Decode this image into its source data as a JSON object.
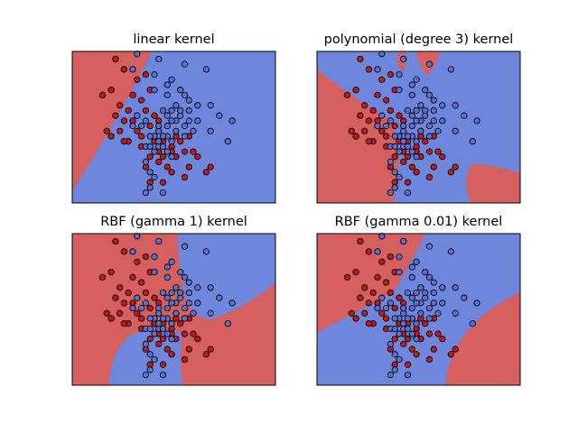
{
  "figure": {
    "colors": {
      "class_a": "#d65f5f",
      "class_b": "#6f86dd",
      "point_a": "#c0191f",
      "point_b": "#5a70d2",
      "point_edge": "#000000",
      "frame": "#000000"
    }
  },
  "chart_data": [
    {
      "type": "scatter",
      "title": "linear kernel",
      "xlim": [
        4.0,
        8.7
      ],
      "ylim": [
        1.8,
        4.75
      ],
      "show_ticks": false,
      "decision_regions": "linear",
      "series_ref": "points"
    },
    {
      "type": "scatter",
      "title": "polynomial (degree 3) kernel",
      "xlim": [
        4.0,
        8.7
      ],
      "ylim": [
        1.8,
        4.75
      ],
      "show_ticks": false,
      "decision_regions": "polynomial",
      "series_ref": "points"
    },
    {
      "type": "scatter",
      "title": "RBF (gamma 1) kernel",
      "xlim": [
        4.0,
        8.7
      ],
      "ylim": [
        1.8,
        4.75
      ],
      "show_ticks": false,
      "decision_regions": "rbf_gamma_1",
      "series_ref": "points"
    },
    {
      "type": "scatter",
      "title": "RBF (gamma 0.01) kernel",
      "xlim": [
        4.0,
        8.7
      ],
      "ylim": [
        1.8,
        4.75
      ],
      "show_ticks": false,
      "decision_regions": "rbf_gamma_001",
      "series_ref": "points"
    }
  ],
  "points": [
    [
      5.0,
      4.6,
      0
    ],
    [
      5.2,
      4.4,
      0
    ],
    [
      5.5,
      4.2,
      0
    ],
    [
      5.7,
      4.3,
      0
    ],
    [
      5.8,
      4.0,
      0
    ],
    [
      5.4,
      3.9,
      0
    ],
    [
      5.6,
      3.8,
      0
    ],
    [
      5.1,
      3.7,
      0
    ],
    [
      5.3,
      3.6,
      0
    ],
    [
      5.7,
      3.6,
      0
    ],
    [
      5.9,
      3.5,
      0
    ],
    [
      5.0,
      3.5,
      0
    ],
    [
      5.4,
      3.4,
      0
    ],
    [
      5.2,
      3.4,
      0
    ],
    [
      5.8,
      3.3,
      0
    ],
    [
      6.0,
      3.4,
      0
    ],
    [
      5.5,
      3.2,
      0
    ],
    [
      5.1,
      3.2,
      0
    ],
    [
      4.8,
      3.2,
      0
    ],
    [
      4.9,
      3.1,
      0
    ],
    [
      5.3,
      3.0,
      0
    ],
    [
      5.6,
      3.1,
      0
    ],
    [
      6.1,
      3.0,
      0
    ],
    [
      5.9,
      3.0,
      0
    ],
    [
      5.2,
      3.0,
      0
    ],
    [
      5.6,
      2.9,
      0
    ],
    [
      6.3,
      2.9,
      0
    ],
    [
      6.4,
      3.1,
      0
    ],
    [
      6.5,
      3.0,
      0
    ],
    [
      6.7,
      3.1,
      0
    ],
    [
      6.6,
      2.8,
      0
    ],
    [
      6.3,
      2.8,
      0
    ],
    [
      6.1,
      2.7,
      0
    ],
    [
      6.0,
      2.6,
      0
    ],
    [
      5.8,
      2.7,
      0
    ],
    [
      6.4,
      2.7,
      0
    ],
    [
      6.9,
      2.7,
      0
    ],
    [
      7.2,
      2.5,
      0
    ],
    [
      6.7,
      2.5,
      0
    ],
    [
      6.2,
      2.5,
      0
    ],
    [
      5.7,
      2.5,
      0
    ],
    [
      6.3,
      2.4,
      0
    ],
    [
      6.6,
      2.3,
      0
    ],
    [
      7.1,
      2.4,
      0
    ],
    [
      4.7,
      3.9,
      0
    ],
    [
      4.9,
      4.0,
      0
    ],
    [
      5.8,
      2.2,
      0
    ],
    [
      6.1,
      2.2,
      0
    ],
    [
      6.0,
      2.8,
      0
    ],
    [
      6.8,
      2.8,
      0
    ],
    [
      5.5,
      4.7,
      1
    ],
    [
      6.0,
      4.6,
      1
    ],
    [
      5.4,
      4.4,
      1
    ],
    [
      5.9,
      4.3,
      1
    ],
    [
      6.6,
      4.5,
      1
    ],
    [
      7.1,
      4.4,
      1
    ],
    [
      6.3,
      4.2,
      1
    ],
    [
      6.2,
      4.1,
      1
    ],
    [
      6.5,
      4.0,
      1
    ],
    [
      5.9,
      4.0,
      1
    ],
    [
      6.6,
      3.9,
      1
    ],
    [
      6.7,
      3.8,
      1
    ],
    [
      6.9,
      3.7,
      1
    ],
    [
      7.2,
      3.7,
      1
    ],
    [
      6.2,
      3.9,
      1
    ],
    [
      6.4,
      3.7,
      1
    ],
    [
      6.3,
      3.6,
      1
    ],
    [
      6.7,
      3.6,
      1
    ],
    [
      6.1,
      3.6,
      1
    ],
    [
      6.5,
      3.5,
      1
    ],
    [
      6.2,
      3.5,
      1
    ],
    [
      6.7,
      3.4,
      1
    ],
    [
      6.4,
      3.4,
      1
    ],
    [
      6.9,
      3.4,
      1
    ],
    [
      6.6,
      3.3,
      1
    ],
    [
      6.2,
      3.3,
      1
    ],
    [
      6.0,
      3.2,
      1
    ],
    [
      6.4,
      3.2,
      1
    ],
    [
      6.8,
      3.2,
      1
    ],
    [
      6.2,
      3.1,
      1
    ],
    [
      5.9,
      3.1,
      1
    ],
    [
      6.3,
      3.0,
      1
    ],
    [
      6.1,
      3.1,
      1
    ],
    [
      5.8,
      3.1,
      1
    ],
    [
      5.6,
      3.3,
      1
    ],
    [
      5.4,
      3.3,
      1
    ],
    [
      5.5,
      3.5,
      1
    ],
    [
      5.7,
      3.4,
      1
    ],
    [
      5.7,
      2.9,
      1
    ],
    [
      5.8,
      2.9,
      1
    ],
    [
      6.0,
      2.9,
      1
    ],
    [
      6.1,
      2.9,
      1
    ],
    [
      5.7,
      2.6,
      1
    ],
    [
      5.8,
      2.4,
      1
    ],
    [
      5.9,
      2.3,
      1
    ],
    [
      5.8,
      2.1,
      1
    ],
    [
      6.1,
      2.0,
      1
    ],
    [
      5.7,
      2.0,
      1
    ],
    [
      7.4,
      3.5,
      1
    ],
    [
      7.7,
      3.4,
      1
    ],
    [
      7.2,
      3.2,
      1
    ],
    [
      7.6,
      3.0,
      1
    ],
    [
      6.3,
      2.7,
      1
    ],
    [
      6.2,
      2.8,
      1
    ],
    [
      6.5,
      3.6,
      1
    ],
    [
      6.3,
      3.4,
      1
    ],
    [
      6.0,
      3.3,
      1
    ],
    [
      6.6,
      3.1,
      1
    ],
    [
      6.0,
      3.0,
      1
    ],
    [
      5.9,
      2.8,
      1
    ]
  ]
}
